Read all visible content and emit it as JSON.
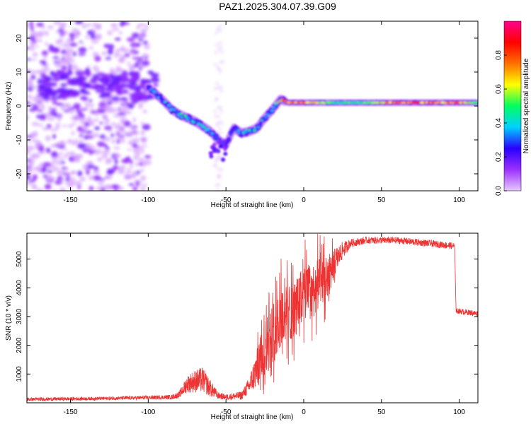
{
  "title": "PAZ1.2025.304.07.39.G09",
  "chart_data": [
    {
      "type": "heatmap",
      "xlabel": "Height of straight line (km)",
      "ylabel": "Frequency (Hz)",
      "xlim": [
        -178,
        112
      ],
      "ylim": [
        -25,
        25
      ],
      "xticks": [
        -150,
        -100,
        -50,
        0,
        50,
        100
      ],
      "yticks": [
        -20,
        -10,
        0,
        10,
        20
      ],
      "colorbar": {
        "label": "Normalized spectral amplitude",
        "range": [
          0,
          1
        ],
        "ticks": [
          0.0,
          0.2,
          0.4,
          0.6,
          0.8
        ],
        "colors": [
          "#e8c8ff",
          "#9b30ff",
          "#2800ff",
          "#00d0ff",
          "#00ff60",
          "#ffff00",
          "#ff7000",
          "#ff0000",
          "#ff0090"
        ]
      },
      "ridge": {
        "x": [
          -100,
          -95,
          -90,
          -85,
          -80,
          -75,
          -70,
          -65,
          -60,
          -55,
          -50,
          -45,
          -40,
          -35,
          -30,
          -25,
          -20,
          -15,
          -10,
          0,
          20,
          40,
          60,
          80,
          100,
          112
        ],
        "y": [
          5.5,
          3.5,
          1.5,
          -1,
          -2.5,
          -3.5,
          -4.5,
          -6,
          -7.5,
          -10,
          -11.5,
          -6.5,
          -8,
          -7.5,
          -6.5,
          -3.5,
          -1,
          2,
          1,
          1,
          1,
          1,
          1,
          1,
          1,
          1
        ],
        "amplitude": [
          0.35,
          0.45,
          0.4,
          0.45,
          0.45,
          0.5,
          0.4,
          0.45,
          0.4,
          0.3,
          0.25,
          0.3,
          0.4,
          0.45,
          0.45,
          0.4,
          0.5,
          0.9,
          0.85,
          0.75,
          0.5,
          0.55,
          0.85,
          0.8,
          0.8,
          0.5
        ]
      }
    },
    {
      "type": "line",
      "xlabel": "Height of straight line (km)",
      "ylabel": "SNR (10 * v/v)",
      "xlim": [
        -178,
        112
      ],
      "ylim": [
        0,
        5900
      ],
      "xticks": [
        -150,
        -100,
        -50,
        0,
        50,
        100
      ],
      "yticks": [
        1000,
        2000,
        3000,
        4000,
        5000
      ],
      "color": "#ee3333",
      "envelope": {
        "x": [
          -178,
          -130,
          -100,
          -85,
          -80,
          -75,
          -70,
          -65,
          -60,
          -55,
          -50,
          -40,
          -35,
          -30,
          -25,
          -20,
          -15,
          -10,
          -5,
          0,
          5,
          10,
          15,
          20,
          25,
          30,
          40,
          60,
          80,
          97,
          98,
          112
        ],
        "mean": [
          120,
          150,
          180,
          200,
          280,
          650,
          750,
          800,
          500,
          250,
          200,
          250,
          600,
          1200,
          1900,
          2400,
          3000,
          3100,
          3300,
          3800,
          3900,
          4100,
          4300,
          4900,
          5300,
          5550,
          5650,
          5650,
          5550,
          5450,
          3200,
          3100
        ],
        "spread": [
          60,
          60,
          70,
          80,
          120,
          300,
          400,
          450,
          300,
          120,
          100,
          150,
          300,
          700,
          1000,
          1100,
          1100,
          1000,
          1000,
          1000,
          1000,
          900,
          800,
          500,
          300,
          150,
          120,
          120,
          120,
          120,
          100,
          100
        ]
      }
    }
  ]
}
